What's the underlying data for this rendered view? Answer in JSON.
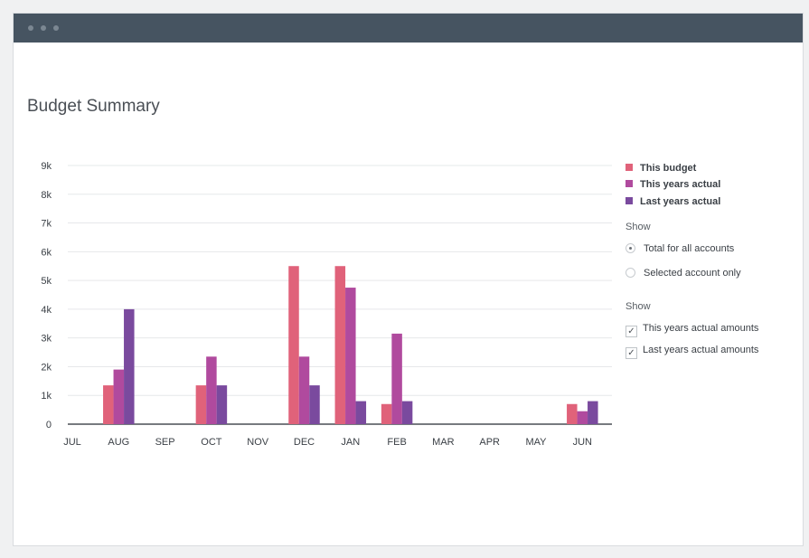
{
  "page": {
    "title": "Budget Summary"
  },
  "legend": [
    {
      "label": "This budget",
      "color": "#e0627a"
    },
    {
      "label": "This years actual",
      "color": "#b04a9e"
    },
    {
      "label": "Last years actual",
      "color": "#7a4a9e"
    }
  ],
  "show_scope": {
    "label": "Show",
    "options": [
      {
        "label": "Total for all accounts",
        "selected": true
      },
      {
        "label": "Selected account only",
        "selected": false
      }
    ]
  },
  "show_series": {
    "label": "Show",
    "options": [
      {
        "label": "This years actual amounts",
        "checked": true,
        "mark": "✓"
      },
      {
        "label": "Last years actual amounts",
        "checked": true,
        "mark": "✓"
      }
    ]
  },
  "chart_data": {
    "type": "bar",
    "title": "Budget Summary",
    "categories": [
      "JUL",
      "AUG",
      "SEP",
      "OCT",
      "NOV",
      "DEC",
      "JAN",
      "FEB",
      "MAR",
      "APR",
      "MAY",
      "JUN"
    ],
    "series": [
      {
        "name": "This budget",
        "color": "#e0627a",
        "values": [
          0,
          1350,
          0,
          1350,
          0,
          5500,
          5500,
          700,
          0,
          0,
          0,
          700
        ]
      },
      {
        "name": "This years actual",
        "color": "#b04a9e",
        "values": [
          0,
          1900,
          0,
          2350,
          0,
          2350,
          4750,
          3150,
          0,
          0,
          0,
          450
        ]
      },
      {
        "name": "Last years actual",
        "color": "#7a4a9e",
        "values": [
          0,
          4000,
          0,
          1350,
          0,
          1350,
          800,
          800,
          0,
          0,
          0,
          800
        ]
      }
    ],
    "yticks": [
      "0",
      "1k",
      "2k",
      "3k",
      "4k",
      "5k",
      "6k",
      "7k",
      "8k",
      "9k"
    ],
    "ylim": [
      0,
      9000
    ],
    "xlabel": "",
    "ylabel": "",
    "grid": true,
    "legend_position": "right"
  }
}
